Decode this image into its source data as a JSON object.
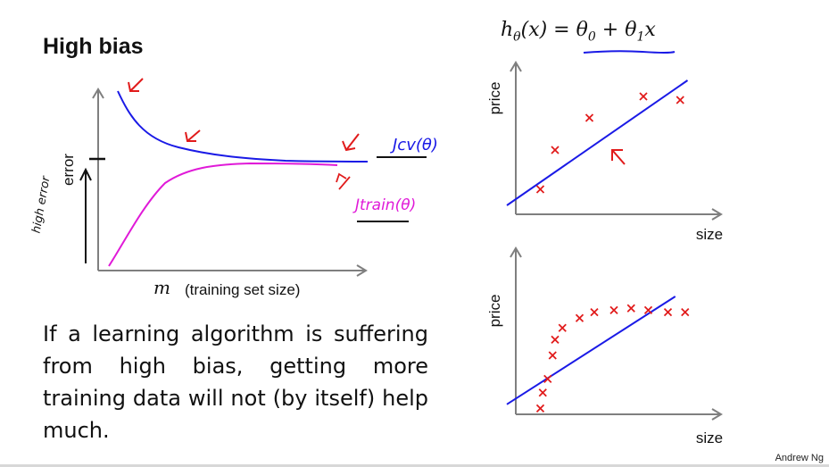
{
  "slide": {
    "title": "High bias",
    "formula": "hθ(x) = θ0 + θ1x",
    "body": "If a learning algorithm is suffering from high bias, getting more training data will not (by itself) help much.",
    "credit": "Andrew Ng"
  },
  "learning_curve": {
    "ylabel": "error",
    "xlabel_symbol": "m",
    "xlabel": "(training set size)",
    "annotation_cv": "Jcv(θ)",
    "annotation_train": "Jtrain(θ)",
    "annotation_high_error": "high error",
    "colors": {
      "cv": "#1a1ae6",
      "train": "#e01ad8",
      "annotation": "#e11b1b",
      "axis": "#7f7f7f"
    }
  },
  "chart_data": [
    {
      "type": "scatter",
      "title": "",
      "xlabel": "size",
      "ylabel": "price",
      "points": [
        [
          1.0,
          1.4
        ],
        [
          1.6,
          3.6
        ],
        [
          3.0,
          5.4
        ],
        [
          5.2,
          6.6
        ],
        [
          6.7,
          6.4
        ]
      ],
      "fit_line": [
        [
          0.0,
          0.6
        ],
        [
          7.0,
          7.5
        ]
      ],
      "xlim": [
        0,
        8
      ],
      "ylim": [
        0,
        8
      ],
      "grid": false,
      "marker_color": "#e11b1b",
      "line_color": "#1a1ae6"
    },
    {
      "type": "scatter",
      "title": "",
      "xlabel": "size",
      "ylabel": "price",
      "points": [
        [
          1.0,
          0.3
        ],
        [
          1.1,
          1.1
        ],
        [
          1.3,
          1.8
        ],
        [
          1.5,
          3.0
        ],
        [
          1.6,
          3.8
        ],
        [
          1.9,
          4.4
        ],
        [
          2.6,
          4.9
        ],
        [
          3.2,
          5.2
        ],
        [
          4.0,
          5.3
        ],
        [
          4.7,
          5.4
        ],
        [
          5.4,
          5.3
        ],
        [
          6.2,
          5.2
        ],
        [
          6.9,
          5.2
        ]
      ],
      "fit_line": [
        [
          0.0,
          0.6
        ],
        [
          6.5,
          6.0
        ]
      ],
      "xlim": [
        0,
        8
      ],
      "ylim": [
        0,
        8
      ],
      "grid": false,
      "marker_color": "#e11b1b",
      "line_color": "#1a1ae6"
    }
  ]
}
